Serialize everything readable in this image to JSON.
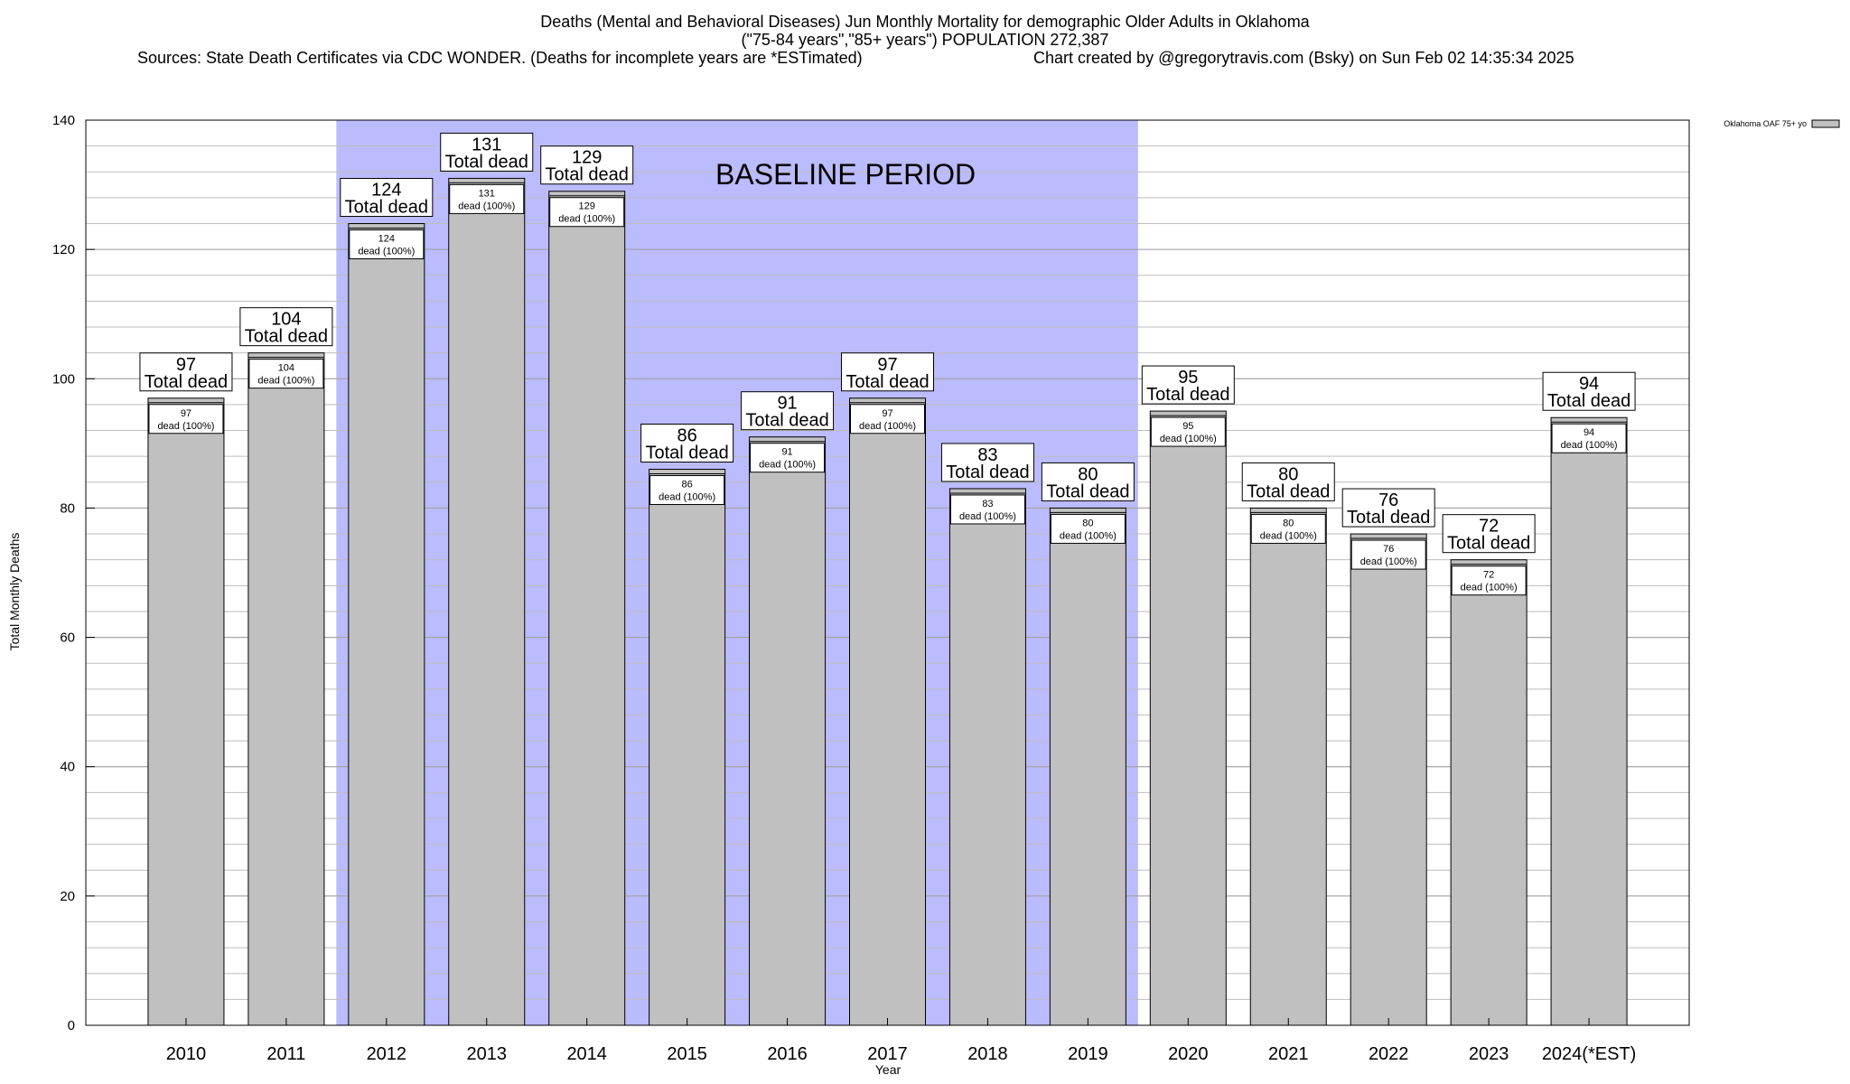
{
  "chart_data": {
    "type": "bar",
    "title_lines": [
      "Deaths (Mental and Behavioral Diseases) Jun Monthly Mortality for demographic Older Adults in Oklahoma",
      "(\"75-84 years\",\"85+ years\") POPULATION 272,387"
    ],
    "sources": "Sources: State Death Certificates via CDC WONDER. (Deaths for incomplete years are *ESTimated)",
    "credit": "Chart created by @gregorytravis.com (Bsky) on Sun Feb 02 14:35:34 2025",
    "xlabel": "Year",
    "ylabel": "Total Monthly Deaths",
    "ylim": [
      0,
      140
    ],
    "yticks": [
      0,
      20,
      40,
      60,
      80,
      100,
      120,
      140
    ],
    "categories": [
      "2010",
      "2011",
      "2012",
      "2013",
      "2014",
      "2015",
      "2016",
      "2017",
      "2018",
      "2019",
      "2020",
      "2021",
      "2022",
      "2023",
      "2024(*EST)"
    ],
    "series": [
      {
        "name": "Oklahoma OAF 75+ yo",
        "values": [
          97,
          104,
          124,
          131,
          129,
          86,
          91,
          97,
          83,
          80,
          95,
          80,
          76,
          72,
          94
        ],
        "color": "#c0c0c0"
      }
    ],
    "top_label_suffix": "Total dead",
    "inner_label_suffix": "dead (100%)",
    "baseline_period": {
      "label": "BASELINE PERIOD",
      "start_category": "2012",
      "end_category": "2019",
      "color": "#bbbbff"
    },
    "legend_position": "top-right",
    "grid": true
  }
}
